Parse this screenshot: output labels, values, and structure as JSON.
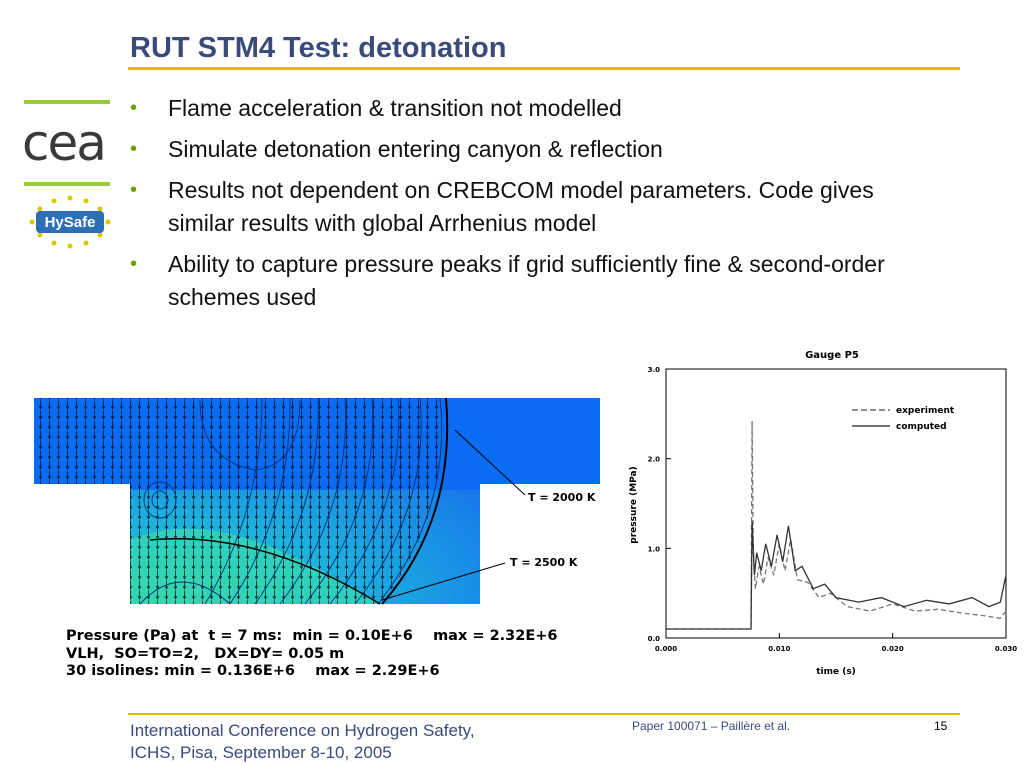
{
  "slide": {
    "title": "RUT STM4 Test: detonation",
    "bullets": [
      "Flame acceleration & transition not modelled",
      "Simulate detonation entering canyon & reflection",
      "Results not dependent on CREBCOM model parameters. Code gives similar results with global Arrhenius model",
      "Ability to capture pressure peaks if grid sufficiently fine & second-order schemes used"
    ],
    "bullet_marker": "•",
    "accent_color": "#e6b800",
    "title_color": "#3a4a7a",
    "bullet_color": "#6aa000"
  },
  "logos": {
    "cea": "cea",
    "hysafe": "HySafe"
  },
  "simulation": {
    "label_t2000": "T = 2000 K",
    "label_t2500": "T = 2500 K",
    "caption_line1": "Pressure (Pa) at  t = 7 ms:  min = 0.10E+6    max = 2.32E+6",
    "caption_line2": "VLH,  SO=TO=2,   DX=DY= 0.05 m",
    "caption_line3": "30 isolines: min = 0.136E+6    max = 2.29E+6"
  },
  "chart_data": {
    "type": "line",
    "title": "Gauge P5",
    "xlabel": "time (s)",
    "ylabel": "pressure (MPa)",
    "xlim": [
      0.0,
      0.03
    ],
    "ylim": [
      0.0,
      3.0
    ],
    "xticks": [
      "0.000",
      "0.010",
      "0.020",
      "0.030"
    ],
    "yticks": [
      "0.0",
      "1.0",
      "2.0",
      "3.0"
    ],
    "legend_position": "top-right",
    "series": [
      {
        "name": "experiment",
        "style": "dashed",
        "x": [
          0.0,
          0.0075,
          0.0076,
          0.0077,
          0.0079,
          0.0082,
          0.0086,
          0.009,
          0.0095,
          0.01,
          0.0105,
          0.011,
          0.0116,
          0.0125,
          0.0135,
          0.0145,
          0.016,
          0.018,
          0.02,
          0.022,
          0.024,
          0.026,
          0.028,
          0.0295,
          0.03
        ],
        "y": [
          0.1,
          0.1,
          2.42,
          0.95,
          0.55,
          0.8,
          0.6,
          0.9,
          0.7,
          1.05,
          0.75,
          1.1,
          0.65,
          0.62,
          0.45,
          0.5,
          0.35,
          0.3,
          0.38,
          0.3,
          0.32,
          0.28,
          0.25,
          0.22,
          0.3
        ]
      },
      {
        "name": "computed",
        "style": "solid",
        "x": [
          0.0,
          0.0075,
          0.0076,
          0.0078,
          0.008,
          0.0084,
          0.0088,
          0.0093,
          0.0098,
          0.0103,
          0.0108,
          0.0114,
          0.012,
          0.013,
          0.014,
          0.015,
          0.017,
          0.019,
          0.021,
          0.023,
          0.025,
          0.027,
          0.0285,
          0.0295,
          0.03
        ],
        "y": [
          0.1,
          0.1,
          1.3,
          0.7,
          0.95,
          0.75,
          1.05,
          0.8,
          1.15,
          0.85,
          1.25,
          0.75,
          0.8,
          0.55,
          0.6,
          0.45,
          0.4,
          0.45,
          0.35,
          0.42,
          0.38,
          0.45,
          0.35,
          0.4,
          0.7
        ]
      }
    ]
  },
  "footer": {
    "conference_line1": "International Conference on Hydrogen Safety,",
    "conference_line2": "ICHS, Pisa, September 8-10, 2005",
    "paper_ref": "Paper 100071 – Paillère et al.",
    "page_number": "15"
  }
}
